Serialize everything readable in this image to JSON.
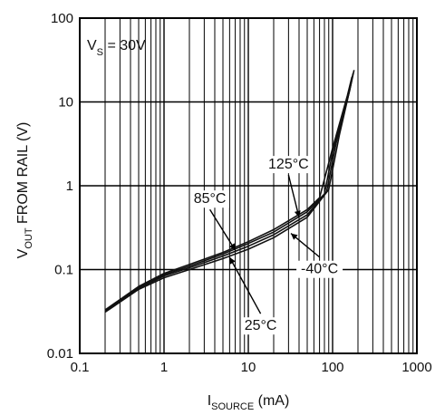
{
  "chart_data": {
    "type": "line",
    "xscale": "log",
    "yscale": "log",
    "xlim": [
      0.1,
      1000
    ],
    "ylim": [
      0.01,
      100
    ],
    "grid": true,
    "xlabel": {
      "main": "I",
      "sub": "SOURCE",
      "unit": " (mA)"
    },
    "ylabel": {
      "main": "V",
      "sub": "OUT",
      "rest": " FROM RAIL (V)"
    },
    "x_ticks": [
      {
        "value": 0.1,
        "label": "0.1"
      },
      {
        "value": 1,
        "label": "1"
      },
      {
        "value": 10,
        "label": "10"
      },
      {
        "value": 100,
        "label": "100"
      },
      {
        "value": 1000,
        "label": "1000"
      }
    ],
    "y_ticks": [
      {
        "value": 0.01,
        "label": "0.01"
      },
      {
        "value": 0.1,
        "label": "0.1"
      },
      {
        "value": 1,
        "label": "1"
      },
      {
        "value": 10,
        "label": "10"
      },
      {
        "value": 100,
        "label": "100"
      }
    ],
    "condition": {
      "main": "V",
      "sub": "S",
      "rest": " = 30V"
    },
    "series": [
      {
        "name": "125°C",
        "points": [
          [
            0.2,
            0.033
          ],
          [
            0.5,
            0.063
          ],
          [
            1,
            0.09
          ],
          [
            2,
            0.115
          ],
          [
            5,
            0.16
          ],
          [
            10,
            0.215
          ],
          [
            20,
            0.3
          ],
          [
            50,
            0.52
          ],
          [
            70,
            0.72
          ],
          [
            100,
            2.8
          ],
          [
            150,
            12
          ],
          [
            170,
            20
          ]
        ]
      },
      {
        "name": "85°C",
        "points": [
          [
            0.2,
            0.032
          ],
          [
            0.5,
            0.061
          ],
          [
            1,
            0.087
          ],
          [
            2,
            0.11
          ],
          [
            5,
            0.153
          ],
          [
            10,
            0.205
          ],
          [
            20,
            0.28
          ],
          [
            50,
            0.49
          ],
          [
            80,
            0.8
          ],
          [
            100,
            2.5
          ],
          [
            150,
            11
          ],
          [
            170,
            19
          ]
        ]
      },
      {
        "name": "25°C",
        "points": [
          [
            0.2,
            0.032
          ],
          [
            0.5,
            0.06
          ],
          [
            1,
            0.084
          ],
          [
            2,
            0.105
          ],
          [
            5,
            0.145
          ],
          [
            10,
            0.19
          ],
          [
            20,
            0.26
          ],
          [
            50,
            0.45
          ],
          [
            85,
            0.85
          ],
          [
            110,
            3.2
          ],
          [
            160,
            14
          ],
          [
            175,
            22
          ]
        ]
      },
      {
        "name": "-40°C",
        "points": [
          [
            0.2,
            0.031
          ],
          [
            0.5,
            0.058
          ],
          [
            1,
            0.08
          ],
          [
            2,
            0.1
          ],
          [
            5,
            0.135
          ],
          [
            10,
            0.175
          ],
          [
            20,
            0.24
          ],
          [
            50,
            0.42
          ],
          [
            90,
            0.9
          ],
          [
            120,
            4
          ],
          [
            165,
            16
          ],
          [
            180,
            24
          ]
        ]
      }
    ],
    "annotations": [
      {
        "text": "125°C",
        "label_at": [
          30,
          1.6
        ],
        "arrow_to": [
          40,
          0.42
        ]
      },
      {
        "text": "85°C",
        "label_at": [
          3.5,
          0.62
        ],
        "arrow_to": [
          7,
          0.17
        ]
      },
      {
        "text": "25°C",
        "label_at": [
          14,
          0.019
        ],
        "arrow_to": [
          6,
          0.14
        ]
      },
      {
        "text": "-40°C",
        "label_at": [
          70,
          0.09
        ],
        "arrow_to": [
          32,
          0.27
        ]
      }
    ]
  }
}
